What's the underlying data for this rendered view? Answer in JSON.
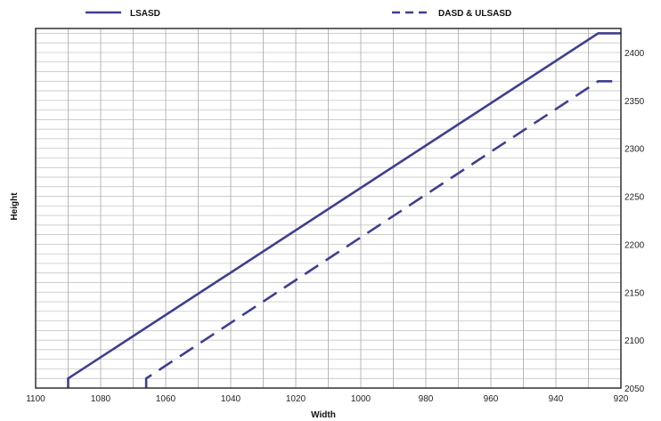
{
  "chart_data": {
    "type": "line",
    "title": "",
    "xlabel": "Width",
    "ylabel": "Height",
    "xlim": [
      1100,
      920
    ],
    "ylim": [
      2050,
      2425
    ],
    "x_reversed": true,
    "y_axis_side": "right",
    "grid": true,
    "legend_position": "top",
    "x_ticks": [
      1100,
      1080,
      1060,
      1040,
      1020,
      1000,
      980,
      960,
      940,
      920
    ],
    "y_ticks": [
      2050,
      2100,
      2150,
      2200,
      2250,
      2300,
      2350,
      2400
    ],
    "series": [
      {
        "name": "LSASD",
        "style": "solid",
        "color": "#3f3f8f",
        "points": [
          [
            1090,
            2050
          ],
          [
            1090,
            2060
          ],
          [
            927,
            2420
          ],
          [
            920,
            2420
          ]
        ]
      },
      {
        "name": "DASD & ULSASD",
        "style": "dashed",
        "color": "#3f3f8f",
        "points": [
          [
            1066,
            2050
          ],
          [
            1066,
            2060
          ],
          [
            927,
            2370
          ],
          [
            920,
            2370
          ]
        ]
      }
    ]
  }
}
